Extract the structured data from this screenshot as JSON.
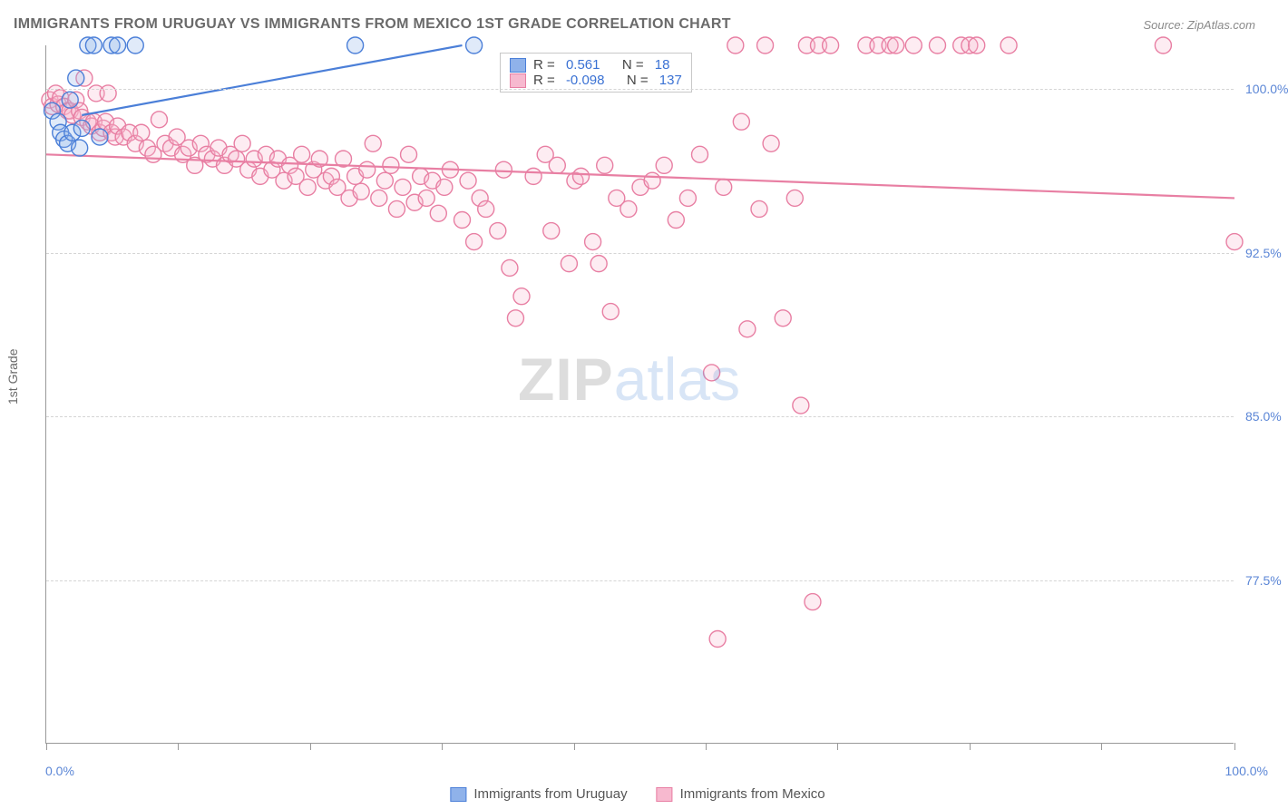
{
  "title": "IMMIGRANTS FROM URUGUAY VS IMMIGRANTS FROM MEXICO 1ST GRADE CORRELATION CHART",
  "source_label": "Source: ",
  "source_value": "ZipAtlas.com",
  "ylabel": "1st Grade",
  "watermark_left": "ZIP",
  "watermark_right": "atlas",
  "chart": {
    "type": "scatter",
    "xlim": [
      0,
      100
    ],
    "ylim": [
      70,
      102
    ],
    "x_min_label": "0.0%",
    "x_max_label": "100.0%",
    "y_ticks": [
      77.5,
      85.0,
      92.5,
      100.0
    ],
    "y_tick_labels": [
      "77.5%",
      "85.0%",
      "92.5%",
      "100.0%"
    ],
    "x_tick_positions": [
      0,
      11.1,
      22.2,
      33.3,
      44.4,
      55.5,
      66.6,
      77.7,
      88.8,
      100
    ],
    "grid_color": "#d5d5d5",
    "background_color": "#ffffff",
    "axis_color": "#999999",
    "tick_label_color": "#5b86d6",
    "marker_radius": 9,
    "marker_stroke_width": 1.4,
    "marker_fill_opacity": 0.28,
    "line_width": 2.2,
    "series": [
      {
        "name": "Immigrants from Uruguay",
        "color_stroke": "#4b7fd8",
        "color_fill": "#8fb2ea",
        "R": "0.561",
        "N": "18",
        "trend": {
          "x1": 3,
          "y1": 98.8,
          "x2": 35,
          "y2": 102
        },
        "points": [
          [
            0.5,
            99.0
          ],
          [
            1.0,
            98.5
          ],
          [
            1.2,
            98.0
          ],
          [
            1.5,
            97.7
          ],
          [
            1.8,
            97.5
          ],
          [
            2.0,
            99.5
          ],
          [
            2.2,
            98.0
          ],
          [
            2.5,
            100.5
          ],
          [
            2.8,
            97.3
          ],
          [
            3.0,
            98.2
          ],
          [
            3.5,
            102.0
          ],
          [
            4.0,
            102.0
          ],
          [
            4.5,
            97.8
          ],
          [
            5.5,
            102.0
          ],
          [
            6.0,
            102.0
          ],
          [
            7.5,
            102.0
          ],
          [
            26.0,
            102.0
          ],
          [
            36.0,
            102.0
          ]
        ]
      },
      {
        "name": "Immigrants from Mexico",
        "color_stroke": "#e87fa3",
        "color_fill": "#f7b9cf",
        "R": "-0.098",
        "N": "137",
        "trend": {
          "x1": 0,
          "y1": 97.0,
          "x2": 100,
          "y2": 95.0
        },
        "points": [
          [
            0.3,
            99.5
          ],
          [
            0.5,
            99.2
          ],
          [
            0.8,
            99.8
          ],
          [
            1.0,
            99.3
          ],
          [
            1.2,
            99.6
          ],
          [
            1.5,
            99.2
          ],
          [
            1.8,
            99.0
          ],
          [
            2.0,
            99.0
          ],
          [
            2.2,
            98.8
          ],
          [
            2.5,
            99.5
          ],
          [
            2.8,
            99.0
          ],
          [
            3.0,
            98.7
          ],
          [
            3.2,
            100.5
          ],
          [
            3.5,
            98.5
          ],
          [
            3.8,
            98.3
          ],
          [
            4.0,
            98.5
          ],
          [
            4.2,
            99.8
          ],
          [
            4.5,
            98.0
          ],
          [
            4.8,
            98.2
          ],
          [
            5.0,
            98.5
          ],
          [
            5.2,
            99.8
          ],
          [
            5.5,
            98.0
          ],
          [
            5.8,
            97.8
          ],
          [
            6.0,
            98.3
          ],
          [
            6.5,
            97.8
          ],
          [
            7.0,
            98.0
          ],
          [
            7.5,
            97.5
          ],
          [
            8.0,
            98.0
          ],
          [
            8.5,
            97.3
          ],
          [
            9.0,
            97.0
          ],
          [
            9.5,
            98.6
          ],
          [
            10.0,
            97.5
          ],
          [
            10.5,
            97.3
          ],
          [
            11.0,
            97.8
          ],
          [
            11.5,
            97.0
          ],
          [
            12.0,
            97.3
          ],
          [
            12.5,
            96.5
          ],
          [
            13.0,
            97.5
          ],
          [
            13.5,
            97.0
          ],
          [
            14.0,
            96.8
          ],
          [
            14.5,
            97.3
          ],
          [
            15.0,
            96.5
          ],
          [
            15.5,
            97.0
          ],
          [
            16.0,
            96.8
          ],
          [
            16.5,
            97.5
          ],
          [
            17.0,
            96.3
          ],
          [
            17.5,
            96.8
          ],
          [
            18.0,
            96.0
          ],
          [
            18.5,
            97.0
          ],
          [
            19.0,
            96.3
          ],
          [
            19.5,
            96.8
          ],
          [
            20.0,
            95.8
          ],
          [
            20.5,
            96.5
          ],
          [
            21.0,
            96.0
          ],
          [
            21.5,
            97.0
          ],
          [
            22.0,
            95.5
          ],
          [
            22.5,
            96.3
          ],
          [
            23.0,
            96.8
          ],
          [
            23.5,
            95.8
          ],
          [
            24.0,
            96.0
          ],
          [
            24.5,
            95.5
          ],
          [
            25.0,
            96.8
          ],
          [
            25.5,
            95.0
          ],
          [
            26.0,
            96.0
          ],
          [
            26.5,
            95.3
          ],
          [
            27.0,
            96.3
          ],
          [
            27.5,
            97.5
          ],
          [
            28.0,
            95.0
          ],
          [
            28.5,
            95.8
          ],
          [
            29.0,
            96.5
          ],
          [
            29.5,
            94.5
          ],
          [
            30.0,
            95.5
          ],
          [
            30.5,
            97.0
          ],
          [
            31.0,
            94.8
          ],
          [
            31.5,
            96.0
          ],
          [
            32.0,
            95.0
          ],
          [
            32.5,
            95.8
          ],
          [
            33.0,
            94.3
          ],
          [
            33.5,
            95.5
          ],
          [
            34.0,
            96.3
          ],
          [
            35.0,
            94.0
          ],
          [
            35.5,
            95.8
          ],
          [
            36.0,
            93.0
          ],
          [
            36.5,
            95.0
          ],
          [
            37.0,
            94.5
          ],
          [
            38.0,
            93.5
          ],
          [
            38.5,
            96.3
          ],
          [
            39.0,
            91.8
          ],
          [
            39.5,
            89.5
          ],
          [
            40.0,
            90.5
          ],
          [
            41.0,
            96.0
          ],
          [
            42.0,
            97.0
          ],
          [
            42.5,
            93.5
          ],
          [
            43.0,
            96.5
          ],
          [
            44.0,
            92.0
          ],
          [
            44.5,
            95.8
          ],
          [
            45.0,
            96.0
          ],
          [
            46.0,
            93.0
          ],
          [
            46.5,
            92.0
          ],
          [
            47.0,
            96.5
          ],
          [
            47.5,
            89.8
          ],
          [
            48.0,
            95.0
          ],
          [
            49.0,
            94.5
          ],
          [
            50.0,
            95.5
          ],
          [
            51.0,
            95.8
          ],
          [
            52.0,
            96.5
          ],
          [
            53.0,
            94.0
          ],
          [
            54.0,
            95.0
          ],
          [
            55.0,
            97.0
          ],
          [
            56.0,
            87.0
          ],
          [
            56.5,
            74.8
          ],
          [
            57.0,
            95.5
          ],
          [
            58.0,
            102.0
          ],
          [
            58.5,
            98.5
          ],
          [
            59.0,
            89.0
          ],
          [
            60.0,
            94.5
          ],
          [
            60.5,
            102.0
          ],
          [
            61.0,
            97.5
          ],
          [
            62.0,
            89.5
          ],
          [
            63.0,
            95.0
          ],
          [
            63.5,
            85.5
          ],
          [
            64.0,
            102.0
          ],
          [
            64.5,
            76.5
          ],
          [
            65.0,
            102.0
          ],
          [
            66.0,
            102.0
          ],
          [
            69.0,
            102.0
          ],
          [
            70.0,
            102.0
          ],
          [
            71.0,
            102.0
          ],
          [
            71.5,
            102.0
          ],
          [
            73.0,
            102.0
          ],
          [
            75.0,
            102.0
          ],
          [
            77.0,
            102.0
          ],
          [
            77.7,
            102.0
          ],
          [
            78.3,
            102.0
          ],
          [
            81.0,
            102.0
          ],
          [
            94.0,
            102.0
          ],
          [
            100.0,
            93.0
          ]
        ]
      }
    ],
    "legend_top": {
      "R_label": "R = ",
      "N_label": "N = "
    },
    "legend_bottom_labels": [
      "Immigrants from Uruguay",
      "Immigrants from Mexico"
    ]
  }
}
